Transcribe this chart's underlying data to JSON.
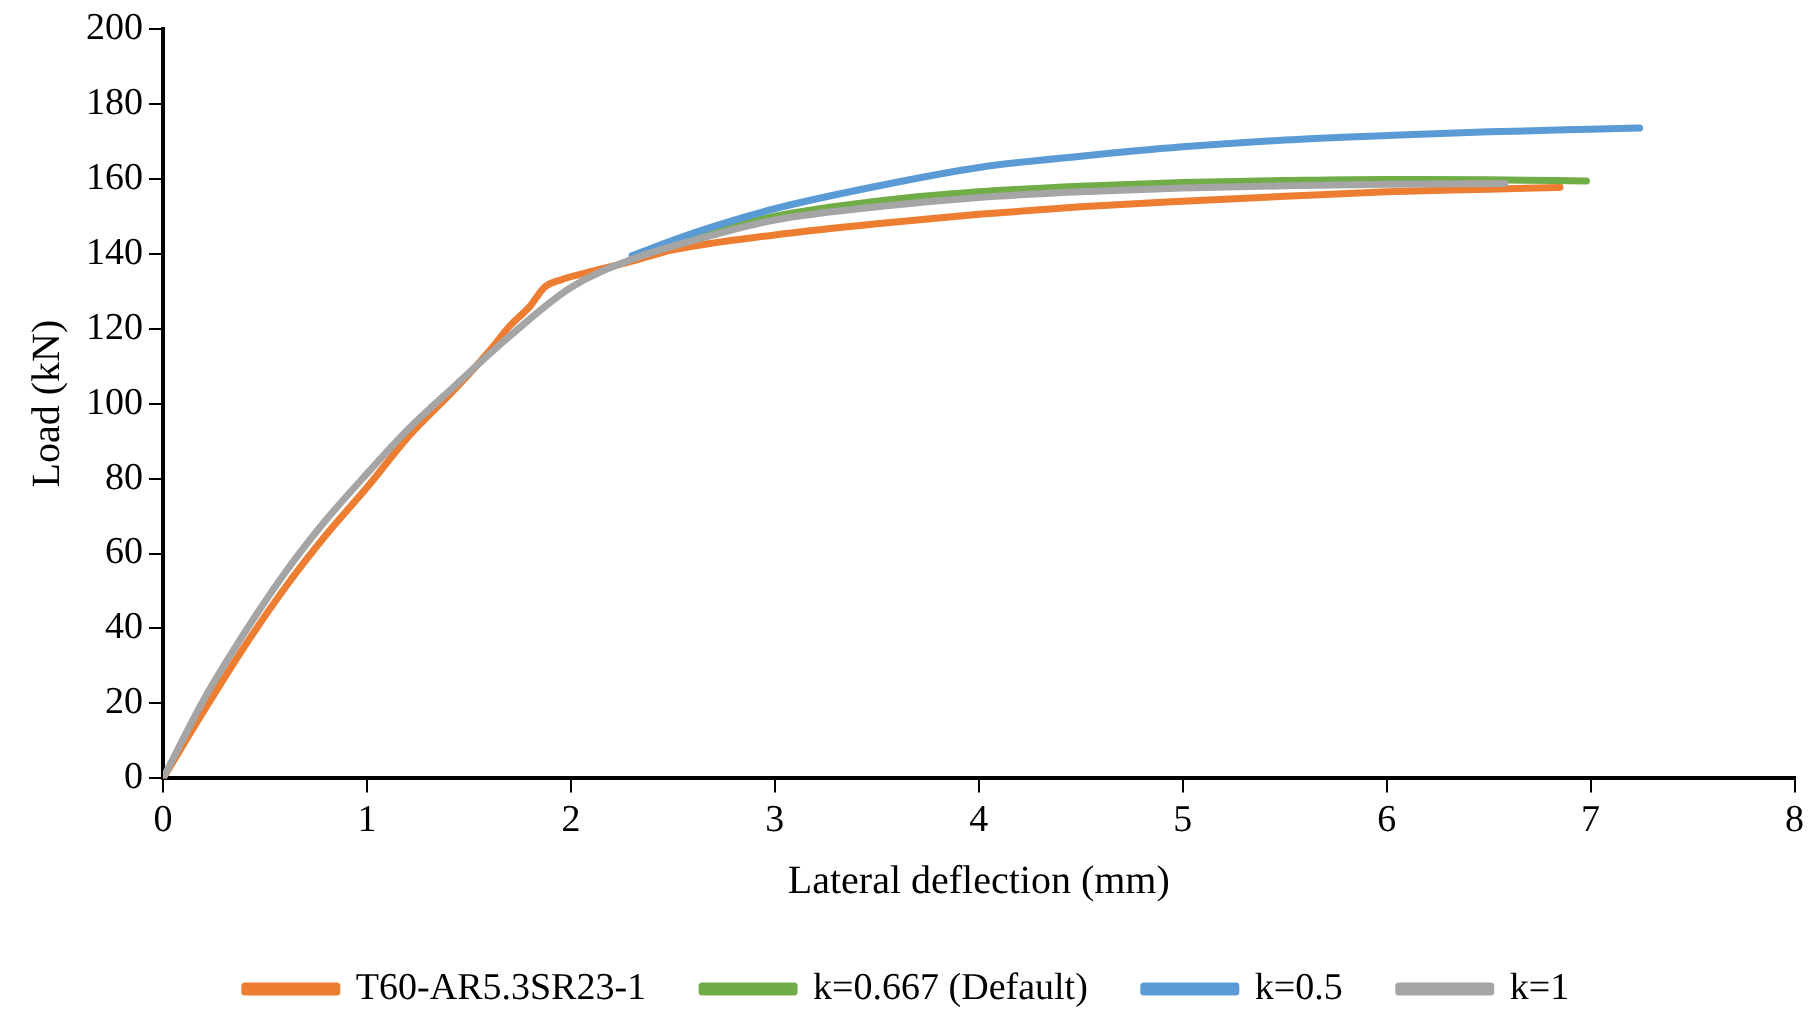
{
  "chart_data": {
    "type": "line",
    "xlabel": "Lateral deflection (mm)",
    "ylabel": "Load (kN)",
    "xlim": [
      0,
      8
    ],
    "xticks": [
      0,
      1,
      2,
      3,
      4,
      5,
      6,
      7,
      8
    ],
    "ylim": [
      0,
      200
    ],
    "yticks": [
      0,
      20,
      40,
      60,
      80,
      100,
      120,
      140,
      160,
      180,
      200
    ],
    "grid": false,
    "legend": "bottom",
    "marker": "none",
    "line_style": "solid",
    "series": [
      {
        "name": "T60-AR5.3SR23-1",
        "color": "#ed7d31",
        "x": [
          0,
          0.2,
          0.39,
          0.6,
          0.8,
          1.0,
          1.2,
          1.43,
          1.6,
          1.7,
          1.8,
          1.87,
          1.95,
          2.07,
          2.3,
          2.5,
          3,
          3.5,
          4,
          4.5,
          5,
          5.5,
          6,
          6.5,
          6.85
        ],
        "values": [
          0,
          18,
          34.4,
          51,
          65,
          77.6,
          91,
          103.8,
          114,
          120.7,
          126,
          131,
          133,
          134.8,
          138,
          141,
          145,
          148,
          150.5,
          152.5,
          154,
          155.3,
          156.5,
          157.2,
          157.7
        ]
      },
      {
        "name": "k=0.667 (Default)",
        "color": "#70ad47",
        "x": [
          2.6,
          3,
          3.5,
          4,
          4.5,
          5,
          5.5,
          6,
          6.5,
          6.98
        ],
        "values": [
          144.5,
          150,
          154,
          156.5,
          158,
          159,
          159.5,
          159.8,
          159.7,
          159.4
        ]
      },
      {
        "name": "k=0.5",
        "color": "#5b9bd5",
        "x": [
          2.3,
          2.6,
          3,
          3.5,
          4,
          4.5,
          5,
          5.5,
          6,
          6.5,
          7,
          7.24
        ],
        "values": [
          139.5,
          145.5,
          152,
          158,
          163,
          166,
          168.5,
          170.3,
          171.5,
          172.5,
          173.2,
          173.5
        ]
      },
      {
        "name": "k=1",
        "color": "#a5a5a5",
        "x": [
          0,
          0.2,
          0.39,
          0.6,
          0.8,
          1.0,
          1.2,
          1.43,
          1.7,
          2.0,
          2.3,
          2.6,
          3,
          3.5,
          4,
          4.5,
          5,
          5.5,
          6,
          6.58
        ],
        "values": [
          0,
          21,
          38,
          55,
          69,
          81.3,
          93,
          104.7,
          118,
          131,
          138.5,
          143.5,
          149,
          152.5,
          155,
          156.5,
          157.5,
          158.1,
          158.5,
          158.7
        ]
      }
    ]
  }
}
